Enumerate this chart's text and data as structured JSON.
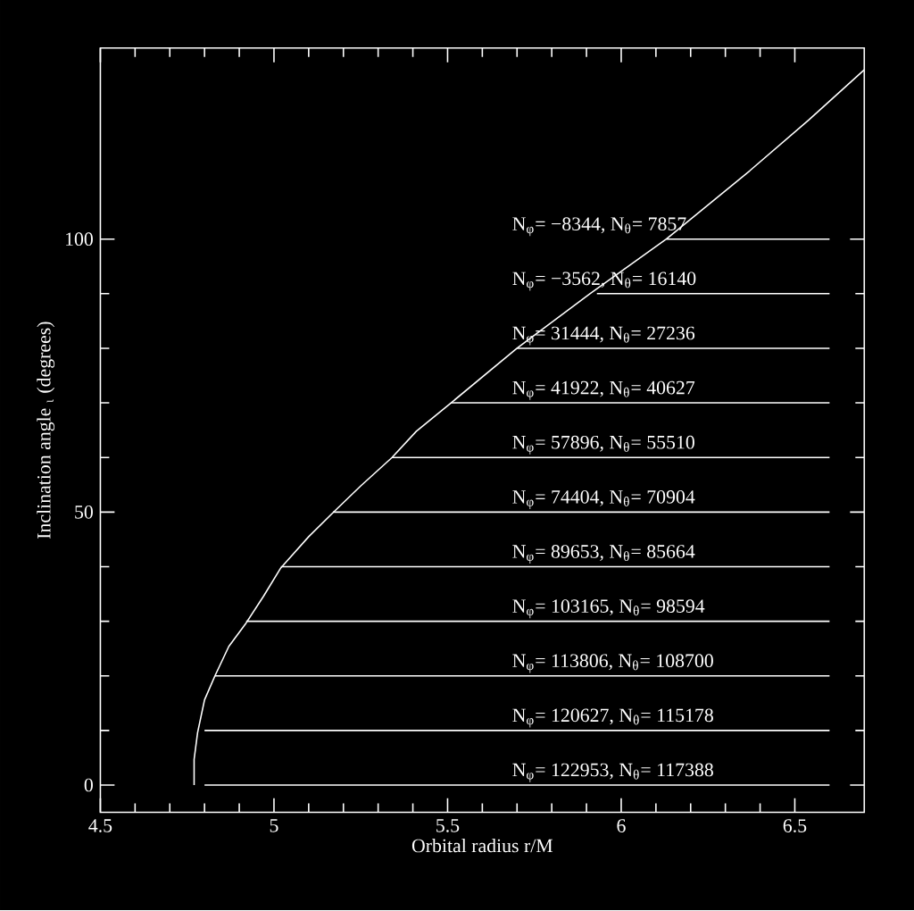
{
  "chart_data": {
    "type": "line",
    "xlabel": "Orbital radius r/M",
    "ylabel": "Inclination angle $_{ι}$  (degrees)",
    "xlim": [
      4.5,
      6.7
    ],
    "ylim": [
      -5,
      135
    ],
    "xticks": [
      4.5,
      5,
      5.5,
      6,
      6.5
    ],
    "yticks": [
      0,
      50,
      100
    ],
    "grid": false,
    "legend": false,
    "marker": "none",
    "line_style": "solid",
    "series": [
      {
        "color": "#ffffff",
        "x": [
          4.77,
          4.77,
          4.78,
          4.8,
          4.83,
          4.87,
          4.92,
          4.97,
          5.02,
          5.1,
          5.17,
          5.25,
          5.34,
          5.41,
          5.51,
          5.7,
          5.91,
          6.13,
          6.37,
          6.54,
          6.7
        ],
        "values": [
          0,
          4.7,
          9.6,
          15.6,
          20,
          25.4,
          29.7,
          34.6,
          39.8,
          45.5,
          49.9,
          54.8,
          60,
          64.8,
          70,
          80,
          90,
          100,
          112.5,
          121.8,
          131
        ]
      },
      {
        "color": "#ffffff",
        "x": [
          4.8,
          6.6
        ],
        "values": [
          0,
          0
        ]
      },
      {
        "color": "#ffffff",
        "x": [
          4.8,
          6.6
        ],
        "values": [
          10,
          10
        ]
      },
      {
        "color": "#ffffff",
        "x": [
          4.83,
          6.6
        ],
        "values": [
          20,
          20
        ]
      },
      {
        "color": "#ffffff",
        "x": [
          4.92,
          6.6
        ],
        "values": [
          30,
          30
        ]
      },
      {
        "color": "#ffffff",
        "x": [
          5.02,
          6.6
        ],
        "values": [
          40,
          40
        ]
      },
      {
        "color": "#ffffff",
        "x": [
          5.17,
          6.6
        ],
        "values": [
          50,
          50
        ]
      },
      {
        "color": "#ffffff",
        "x": [
          5.34,
          6.6
        ],
        "values": [
          60,
          60
        ]
      },
      {
        "color": "#ffffff",
        "x": [
          5.51,
          6.6
        ],
        "values": [
          70,
          70
        ]
      },
      {
        "color": "#ffffff",
        "x": [
          5.7,
          6.6
        ],
        "values": [
          80,
          80
        ]
      },
      {
        "color": "#ffffff",
        "x": [
          5.93,
          6.6
        ],
        "values": [
          90,
          90
        ]
      },
      {
        "color": "#ffffff",
        "x": [
          6.13,
          6.6
        ],
        "values": [
          100,
          100
        ]
      }
    ],
    "annotations": [
      "N$_{φ}$= −8344, N$_{θ}$= 7857",
      "N$_{φ}$= −3562, N$_{θ}$= 16140",
      "N$_{φ}$= 31444, N$_{θ}$= 27236",
      "N$_{φ}$= 41922, N$_{θ}$= 40627",
      "N$_{φ}$= 57896, N$_{θ}$= 55510",
      "N$_{φ}$= 74404, N$_{θ}$= 70904",
      "N$_{φ}$= 89653, N$_{θ}$= 85664",
      "N$_{φ}$= 103165, N$_{θ}$= 98594",
      "N$_{φ}$= 113806, N$_{θ}$= 108700",
      "N$_{φ}$= 120627, N$_{θ}$= 115178",
      "N$_{φ}$= 122953, N$_{θ}$= 117388"
    ]
  }
}
